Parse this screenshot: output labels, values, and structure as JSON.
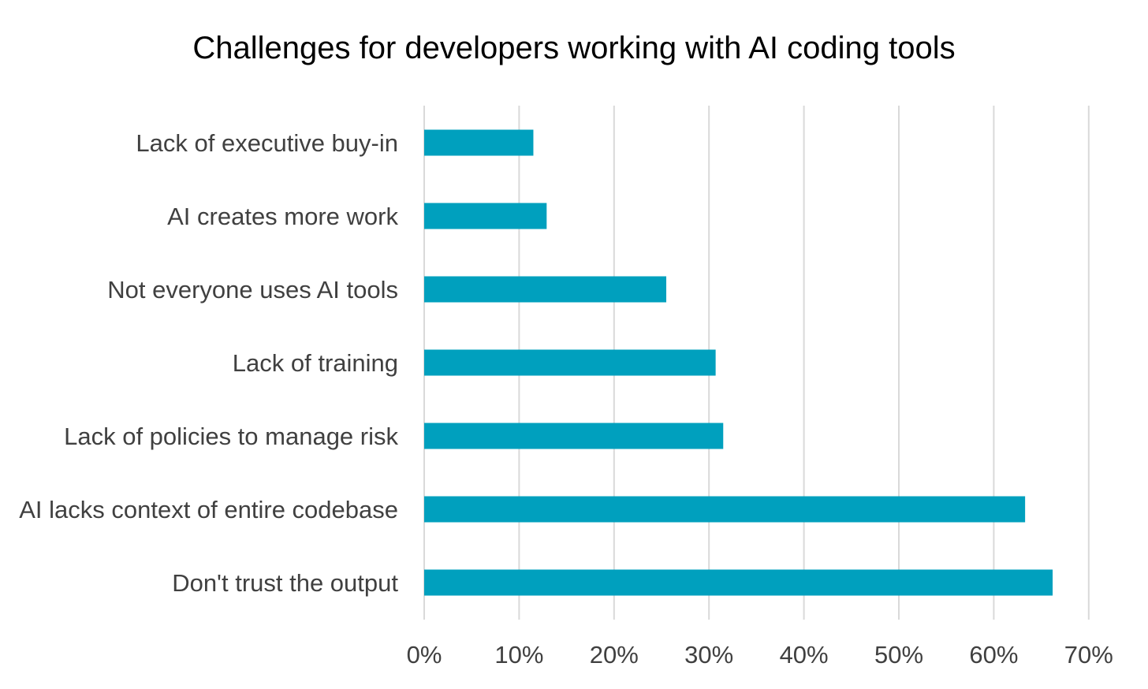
{
  "chart_data": {
    "type": "bar",
    "orientation": "horizontal",
    "title": "Challenges for developers working with AI coding tools",
    "categories": [
      "Lack of executive buy-in",
      "AI creates more work",
      "Not everyone uses AI tools",
      "Lack of training",
      "Lack of policies to manage risk",
      "AI lacks context of entire codebase",
      "Don't trust the output"
    ],
    "values": [
      11.5,
      12.9,
      25.5,
      30.7,
      31.5,
      63.3,
      66.2
    ],
    "xlabel": "",
    "ylabel": "",
    "xlim": [
      0,
      70
    ],
    "x_ticks": [
      0,
      10,
      20,
      30,
      40,
      50,
      60,
      70
    ],
    "x_tick_labels": [
      "0%",
      "10%",
      "20%",
      "30%",
      "40%",
      "50%",
      "60%",
      "70%"
    ],
    "value_format": "percent",
    "grid": "vertical",
    "legend": "none",
    "colors": {
      "bar": "#00A0BE",
      "grid": "#D9D9D9",
      "axis": "#D9D9D9",
      "title": "#000000",
      "label": "#404040"
    }
  }
}
